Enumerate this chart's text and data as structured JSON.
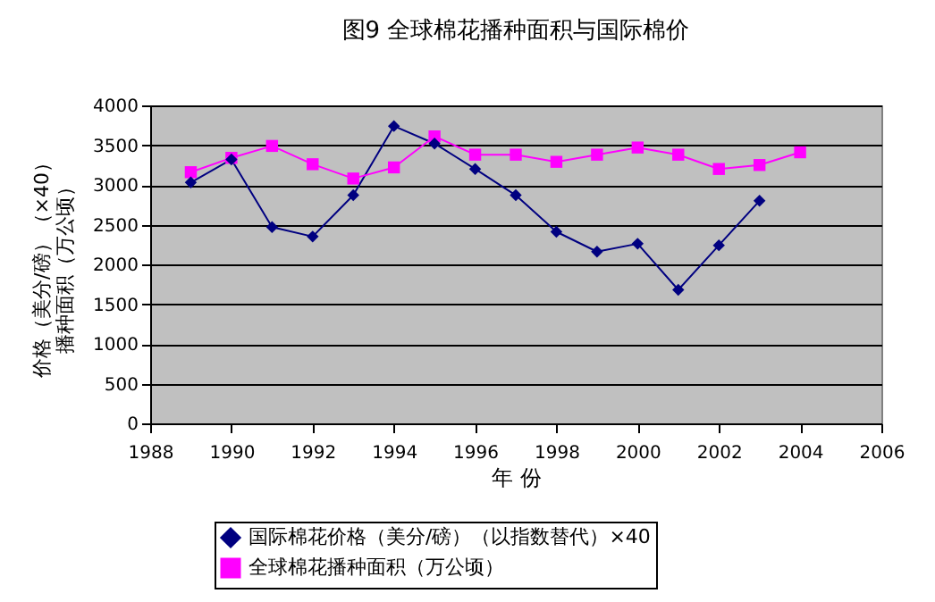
{
  "chart_data": {
    "type": "line",
    "title": "图9 全球棉花播种面积与国际棉价",
    "xlabel": "年 份",
    "ylabel": [
      "价格（美分/磅）（×40）",
      "播种面积（万公顷）"
    ],
    "xlim": [
      1988,
      2006
    ],
    "xticks": [
      1988,
      1990,
      1992,
      1994,
      1996,
      1998,
      2000,
      2002,
      2004,
      2006
    ],
    "ylim": [
      0,
      4000
    ],
    "yticks": [
      0,
      500,
      1000,
      1500,
      2000,
      2500,
      3000,
      3500,
      4000
    ],
    "grid": "y",
    "legend": "bottom",
    "series": [
      {
        "name": "国际棉花价格（美分/磅）（以指数替代）×40",
        "color": "#000080",
        "marker": "diamond",
        "x": [
          1989,
          1990,
          1991,
          1992,
          1993,
          1994,
          1995,
          1996,
          1997,
          1998,
          1999,
          2000,
          2001,
          2002,
          2003
        ],
        "values": [
          3030,
          3320,
          2470,
          2350,
          2870,
          3740,
          3520,
          3200,
          2870,
          2410,
          2160,
          2260,
          1680,
          2240,
          2800
        ]
      },
      {
        "name": "全球棉花播种面积（万公顷）",
        "color": "#ff00ff",
        "marker": "square",
        "x": [
          1989,
          1990,
          1991,
          1992,
          1993,
          1994,
          1995,
          1996,
          1997,
          1998,
          1999,
          2000,
          2001,
          2002,
          2003,
          2004
        ],
        "values": [
          3160,
          3340,
          3490,
          3260,
          3080,
          3220,
          3610,
          3380,
          3380,
          3290,
          3380,
          3470,
          3380,
          3200,
          3250,
          3410
        ]
      }
    ]
  }
}
